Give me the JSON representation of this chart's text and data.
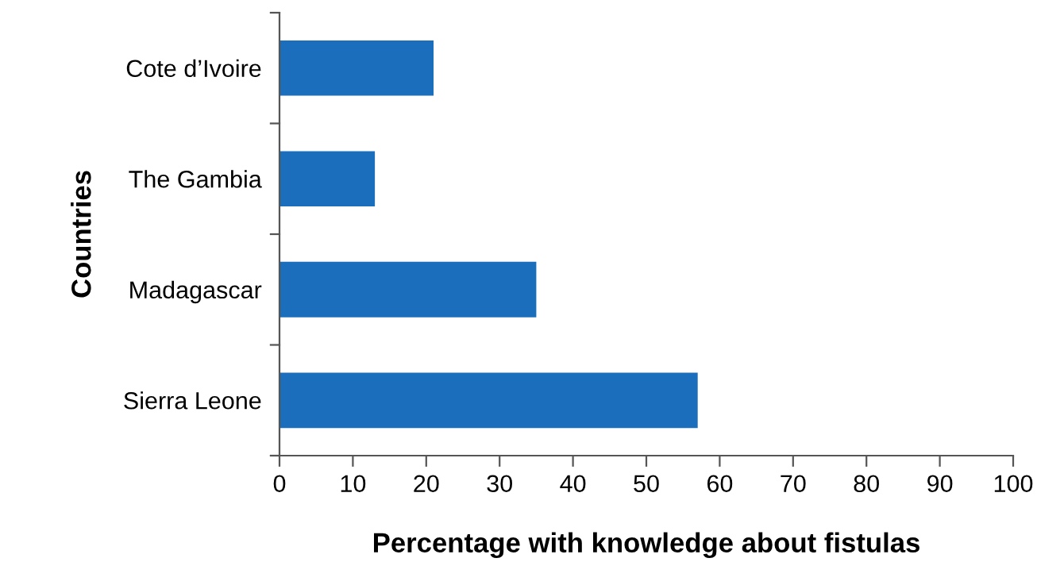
{
  "chart_data": {
    "type": "bar",
    "orientation": "horizontal",
    "xlabel": "Percentage with knowledge about fistulas",
    "ylabel": "Countries",
    "categories": [
      "Cote d’Ivoire",
      "The Gambia",
      "Madagascar",
      "Sierra Leone"
    ],
    "values": [
      21,
      13,
      35,
      57
    ],
    "color": "#1a6ebb",
    "xlim": [
      0,
      100
    ],
    "xticks": [
      0,
      10,
      20,
      30,
      40,
      50,
      60,
      70,
      80,
      90,
      100
    ],
    "grid": false,
    "legend": false
  }
}
